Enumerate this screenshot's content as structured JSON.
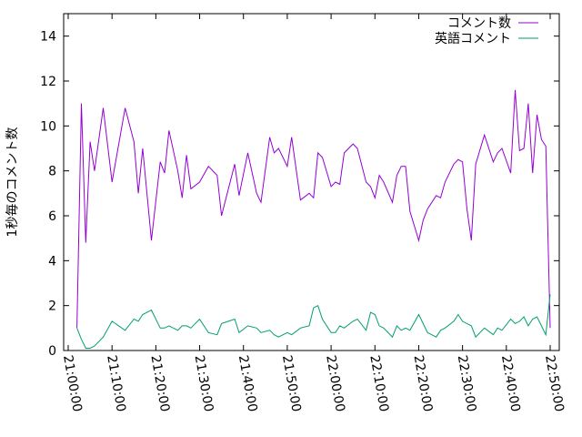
{
  "chart_data": {
    "type": "line",
    "y_label": "1秒毎のコメント数",
    "x": [
      "21:02:00",
      "21:03:00",
      "21:04:00",
      "21:05:00",
      "21:06:00",
      "21:08:00",
      "21:10:00",
      "21:13:00",
      "21:15:00",
      "21:16:00",
      "21:17:00",
      "21:19:00",
      "21:21:00",
      "21:22:00",
      "21:23:00",
      "21:25:00",
      "21:26:00",
      "21:27:00",
      "21:28:00",
      "21:30:00",
      "21:32:00",
      "21:34:00",
      "21:35:00",
      "21:38:00",
      "21:39:00",
      "21:41:00",
      "21:43:00",
      "21:44:00",
      "21:46:00",
      "21:47:00",
      "21:48:00",
      "21:50:00",
      "21:51:00",
      "21:53:00",
      "21:55:00",
      "21:56:00",
      "21:57:00",
      "21:58:00",
      "22:00:00",
      "22:01:00",
      "22:02:00",
      "22:03:00",
      "22:05:00",
      "22:06:00",
      "22:08:00",
      "22:09:00",
      "22:10:00",
      "22:11:00",
      "22:12:00",
      "22:14:00",
      "22:15:00",
      "22:16:00",
      "22:17:00",
      "22:18:00",
      "22:20:00",
      "22:21:00",
      "22:22:00",
      "22:24:00",
      "22:25:00",
      "22:26:00",
      "22:28:00",
      "22:29:00",
      "22:30:00",
      "22:31:00",
      "22:32:00",
      "22:33:00",
      "22:35:00",
      "22:37:00",
      "22:38:00",
      "22:39:00",
      "22:41:00",
      "22:42:00",
      "22:43:00",
      "22:44:00",
      "22:45:00",
      "22:46:00",
      "22:47:00",
      "22:48:00",
      "22:49:00",
      "22:50:00"
    ],
    "series": [
      {
        "name": "コメント数",
        "color": "#9400d3",
        "values": [
          1,
          11,
          4.8,
          9.3,
          8,
          10.8,
          7.5,
          10.8,
          9.3,
          7,
          9,
          4.9,
          8.4,
          7.9,
          9.8,
          8,
          6.8,
          8.7,
          7.2,
          7.5,
          8.2,
          7.8,
          6,
          8.3,
          6.9,
          8.8,
          7,
          6.6,
          9.5,
          8.8,
          9,
          8.2,
          9.5,
          6.7,
          7,
          6.8,
          8.8,
          8.6,
          7.3,
          7.5,
          7.4,
          8.8,
          9.2,
          9,
          7.5,
          7.3,
          6.8,
          7.8,
          7.5,
          6.6,
          7.8,
          8.2,
          8.2,
          6.2,
          4.9,
          5.8,
          6.3,
          6.9,
          6.8,
          7.5,
          8.3,
          8.5,
          8.4,
          6.3,
          4.9,
          8.3,
          9.6,
          8.4,
          8.8,
          9,
          7.9,
          11.6,
          8.9,
          9,
          11,
          7.9,
          10.5,
          9.4,
          9.1,
          1
        ]
      },
      {
        "name": "英語コメント",
        "color": "#009e73",
        "values": [
          1,
          0.5,
          0.1,
          0.1,
          0.2,
          0.6,
          1.3,
          0.9,
          1.4,
          1.3,
          1.6,
          1.8,
          1,
          1,
          1.1,
          0.9,
          1.1,
          1.1,
          1,
          1.4,
          0.8,
          0.7,
          1.2,
          1.4,
          0.8,
          1.1,
          1,
          0.8,
          0.9,
          0.7,
          0.6,
          0.8,
          0.7,
          1,
          1.1,
          1.9,
          2,
          1.4,
          0.8,
          0.8,
          1.1,
          1,
          1.3,
          1.4,
          0.9,
          1.7,
          1.6,
          1.1,
          1,
          0.6,
          1.1,
          0.9,
          1,
          0.9,
          1.6,
          1.2,
          0.8,
          0.6,
          0.9,
          1,
          1.3,
          1.6,
          1.3,
          1.2,
          1.1,
          0.6,
          1,
          0.7,
          1,
          0.9,
          1.4,
          1.2,
          1.3,
          1.5,
          1.1,
          1.4,
          1.5,
          1.1,
          0.7,
          2.5
        ]
      }
    ],
    "xlim": [
      "21:00:00",
      "22:50:00"
    ],
    "xticks": [
      "21:00:00",
      "21:10:00",
      "21:20:00",
      "21:30:00",
      "21:40:00",
      "21:50:00",
      "22:00:00",
      "22:10:00",
      "22:20:00",
      "22:30:00",
      "22:40:00",
      "22:50:00"
    ],
    "ylim": [
      0,
      15
    ],
    "yticks": [
      0,
      2,
      4,
      6,
      8,
      10,
      12,
      14
    ],
    "legend": "top-right"
  }
}
